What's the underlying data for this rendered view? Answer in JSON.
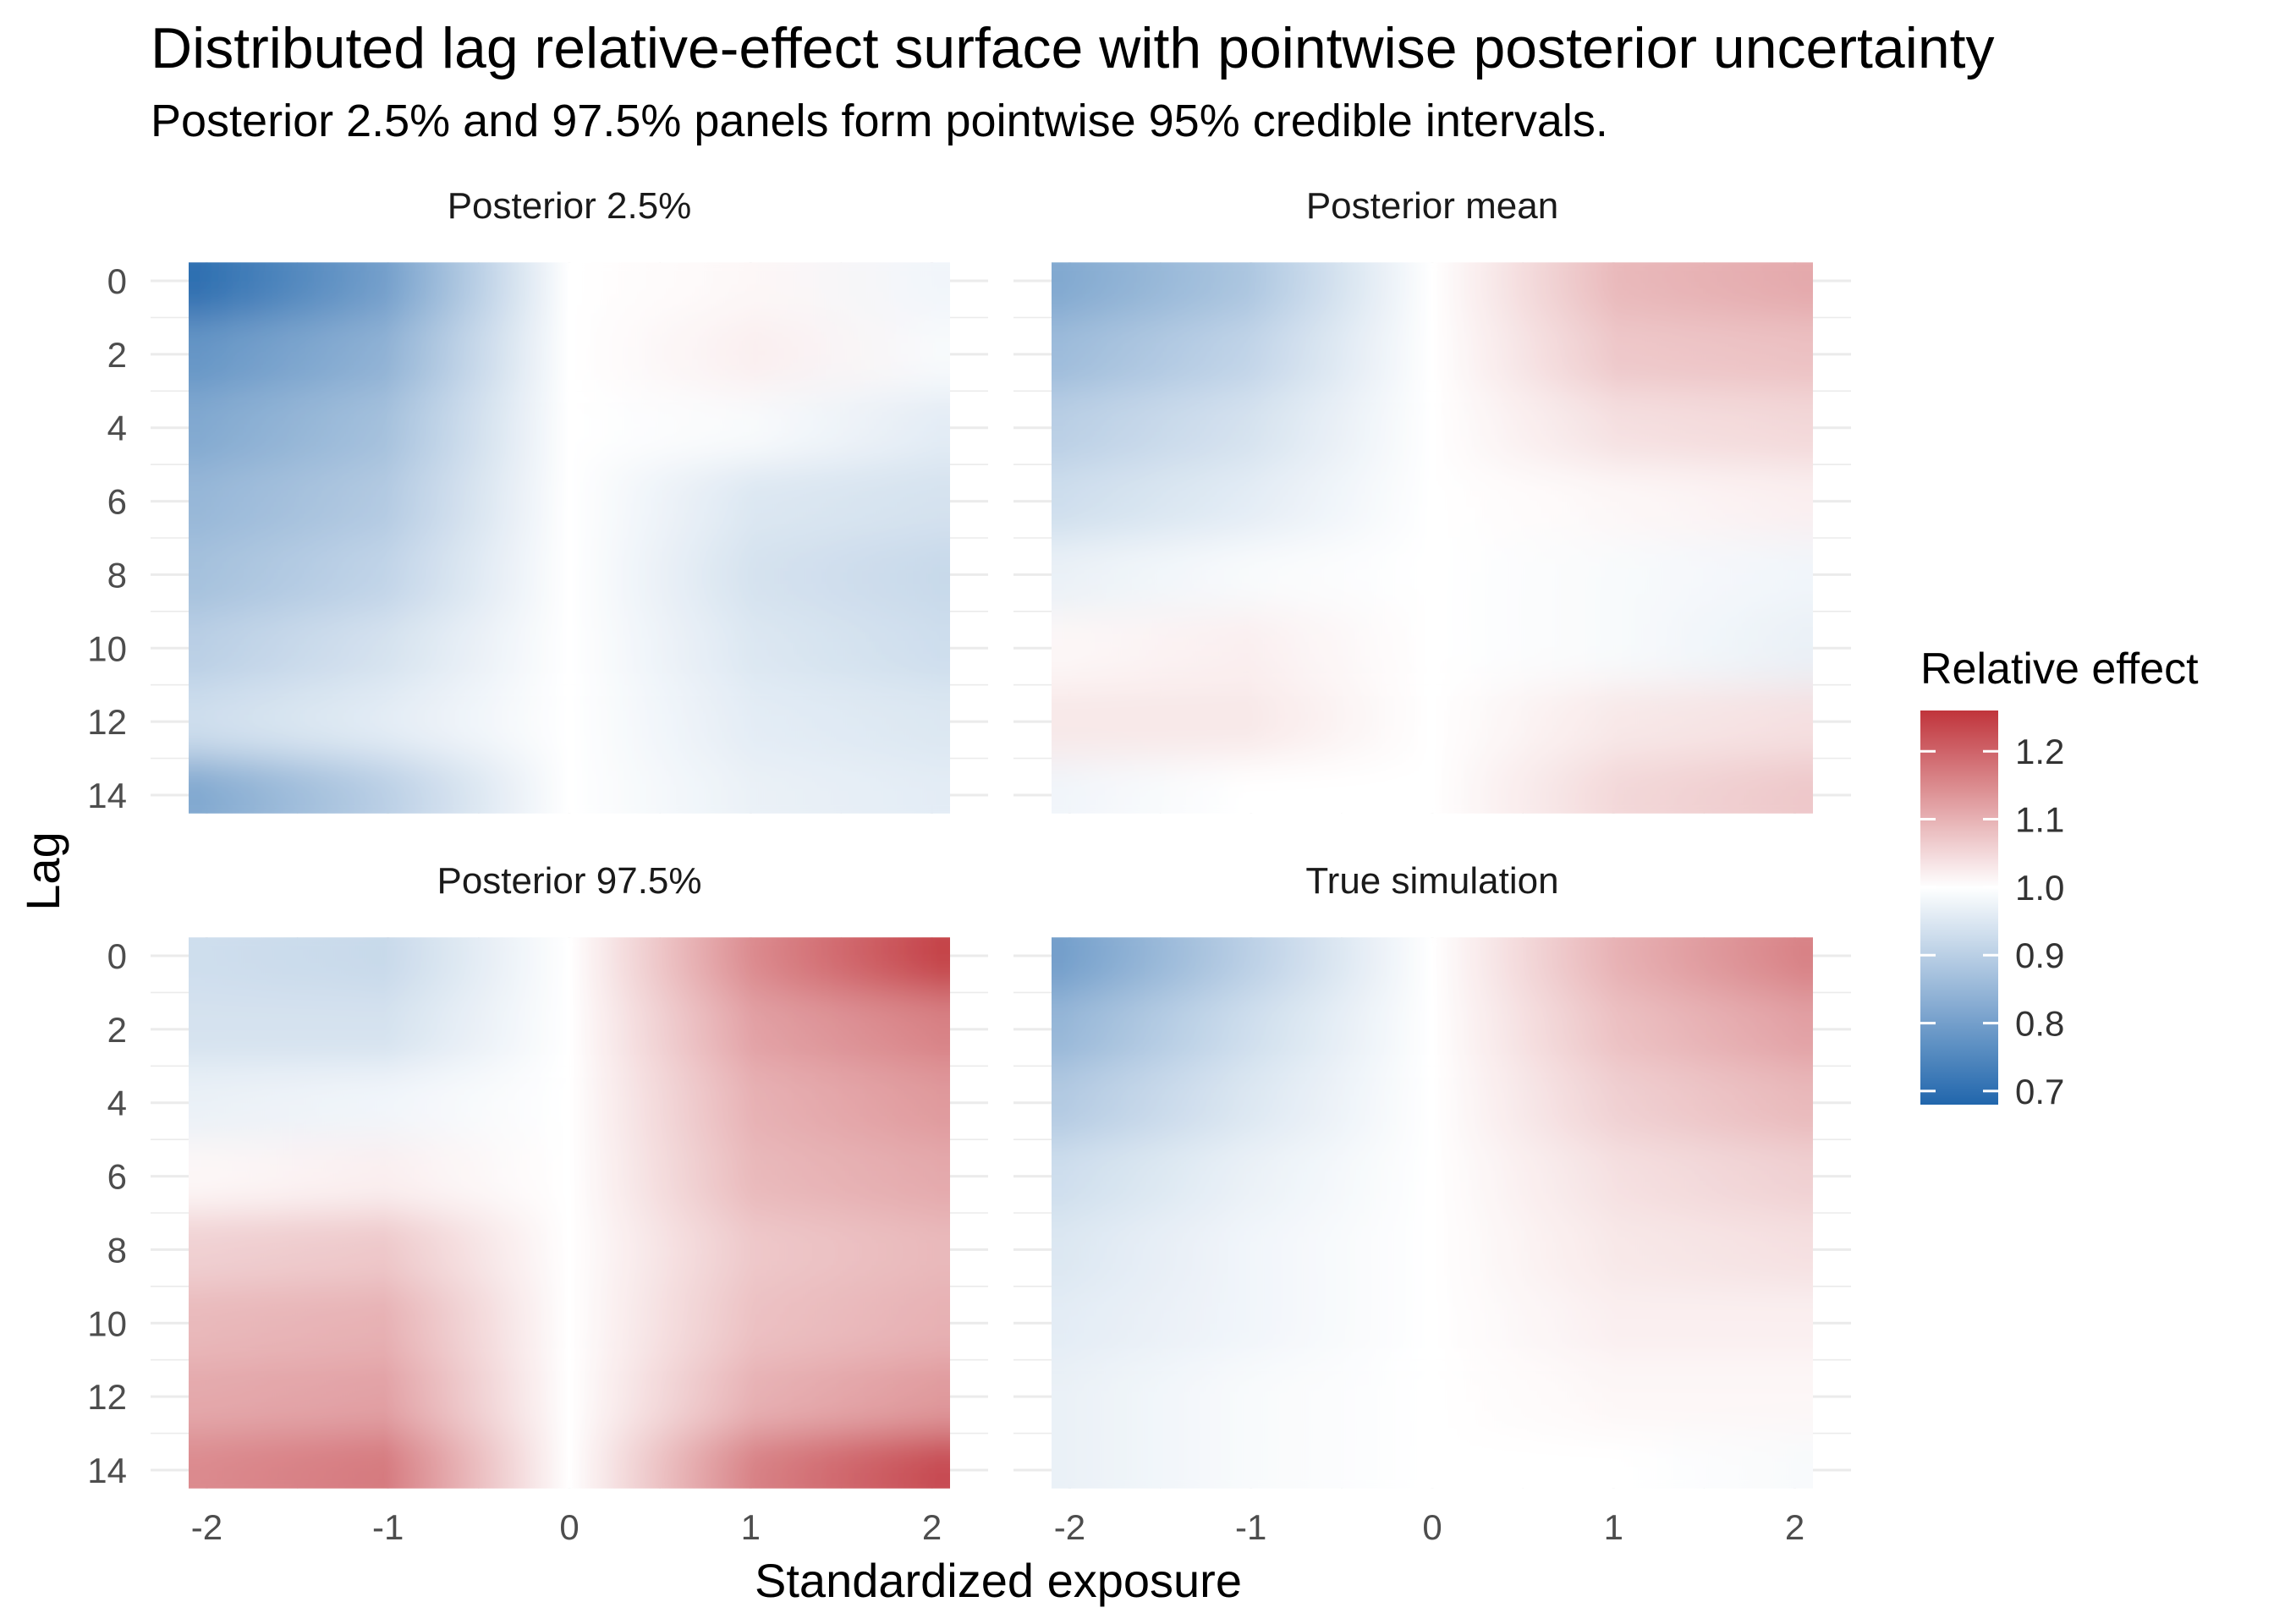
{
  "title": "Distributed lag relative-effect surface with pointwise posterior uncertainty",
  "subtitle": "Posterior 2.5% and 97.5% panels form pointwise 95% credible intervals.",
  "chart_data": {
    "type": "heatmap",
    "xlabel": "Standardized exposure",
    "ylabel": "Lag",
    "x_ticks": [
      -2,
      -1,
      0,
      1,
      2
    ],
    "y_ticks": [
      0,
      2,
      4,
      6,
      8,
      10,
      12,
      14
    ],
    "x_range": [
      -2.1,
      2.1
    ],
    "y_range": [
      0,
      14
    ],
    "y_reversed": true,
    "grid": true,
    "legend": {
      "title": "Relative effect",
      "position": "right",
      "ticks": [
        "1.2",
        "1.1",
        "1.0",
        "0.9",
        "0.8",
        "0.7"
      ],
      "range": [
        0.68,
        1.26
      ],
      "low_color": "#2166ac",
      "mid_color": "#ffffff",
      "high_color": "#c0343b",
      "midpoint": 1.0
    },
    "panels": [
      {
        "name": "Posterior 2.5%",
        "x": [
          -2,
          -1,
          0,
          1,
          2
        ],
        "y": [
          0,
          2,
          4,
          6,
          8,
          10,
          12,
          14
        ],
        "z": [
          [
            0.7,
            0.8,
            1.0,
            1.01,
            0.98
          ],
          [
            0.78,
            0.84,
            1.0,
            1.02,
            0.99
          ],
          [
            0.82,
            0.87,
            1.0,
            0.99,
            0.96
          ],
          [
            0.85,
            0.89,
            1.0,
            0.95,
            0.94
          ],
          [
            0.87,
            0.91,
            1.0,
            0.94,
            0.92
          ],
          [
            0.9,
            0.94,
            1.0,
            0.95,
            0.93
          ],
          [
            0.93,
            0.96,
            1.0,
            0.96,
            0.95
          ],
          [
            0.82,
            0.9,
            1.0,
            0.97,
            0.96
          ]
        ]
      },
      {
        "name": "Posterior mean",
        "x": [
          -2,
          -1,
          0,
          1,
          2
        ],
        "y": [
          0,
          2,
          4,
          6,
          8,
          10,
          12,
          14
        ],
        "z": [
          [
            0.82,
            0.88,
            1.0,
            1.09,
            1.11
          ],
          [
            0.86,
            0.91,
            1.0,
            1.07,
            1.08
          ],
          [
            0.9,
            0.94,
            1.0,
            1.04,
            1.05
          ],
          [
            0.93,
            0.96,
            1.0,
            1.01,
            1.02
          ],
          [
            0.97,
            0.99,
            1.0,
            0.99,
            0.98
          ],
          [
            1.01,
            1.02,
            1.0,
            0.99,
            0.97
          ],
          [
            1.03,
            1.03,
            1.0,
            1.03,
            1.04
          ],
          [
            0.98,
            1.0,
            1.0,
            1.05,
            1.07
          ]
        ]
      },
      {
        "name": "Posterior 97.5%",
        "x": [
          -2,
          -1,
          0,
          1,
          2
        ],
        "y": [
          0,
          2,
          4,
          6,
          8,
          10,
          12,
          14
        ],
        "z": [
          [
            0.93,
            0.92,
            1.0,
            1.15,
            1.24
          ],
          [
            0.94,
            0.94,
            1.0,
            1.12,
            1.16
          ],
          [
            0.97,
            0.98,
            1.0,
            1.1,
            1.13
          ],
          [
            1.01,
            1.02,
            1.0,
            1.09,
            1.11
          ],
          [
            1.06,
            1.07,
            1.0,
            1.07,
            1.09
          ],
          [
            1.09,
            1.1,
            1.0,
            1.08,
            1.1
          ],
          [
            1.11,
            1.12,
            1.0,
            1.1,
            1.13
          ],
          [
            1.15,
            1.17,
            1.0,
            1.16,
            1.23
          ]
        ]
      },
      {
        "name": "True simulation",
        "x": [
          -2,
          -1,
          0,
          1,
          2
        ],
        "y": [
          0,
          2,
          4,
          6,
          8,
          10,
          12,
          14
        ],
        "z": [
          [
            0.8,
            0.9,
            1.0,
            1.1,
            1.16
          ],
          [
            0.85,
            0.93,
            1.0,
            1.08,
            1.12
          ],
          [
            0.89,
            0.95,
            1.0,
            1.06,
            1.09
          ],
          [
            0.93,
            0.97,
            1.0,
            1.04,
            1.06
          ],
          [
            0.95,
            0.98,
            1.0,
            1.03,
            1.04
          ],
          [
            0.96,
            0.98,
            1.0,
            1.02,
            1.02
          ],
          [
            0.97,
            0.99,
            1.0,
            1.01,
            1.01
          ],
          [
            0.97,
            0.99,
            1.0,
            1.0,
            0.99
          ]
        ]
      }
    ]
  }
}
